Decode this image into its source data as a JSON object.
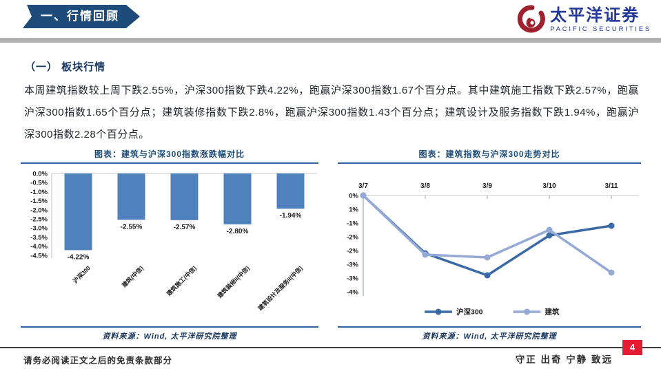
{
  "header": {
    "section_banner": "一、行情回顾",
    "logo_cn": "太平洋证券",
    "logo_en": "PACIFIC SECURITIES"
  },
  "page": {
    "subsection_title": "（一） 板块行情",
    "paragraph": "本周建筑指数较上周下跌2.55%，沪深300指数下跌4.22%，跑赢沪深300指数1.67个百分点。其中建筑施工指数下跌2.57%，跑赢沪深300指数1.65个百分点；建筑装修指数下跌2.8%，跑赢沪深300指数1.43个百分点；建筑设计及服务指数下跌1.94%，跑赢沪深300指数2.28个百分点。"
  },
  "chart_data": [
    {
      "type": "bar",
      "title": "图表：建筑与沪深300指数涨跌幅对比",
      "categories": [
        "沪深300",
        "建筑(中信)",
        "建筑施工(中信)",
        "建筑装修II(中信)",
        "建筑设计及服务II(中信)"
      ],
      "values": [
        -4.22,
        -2.55,
        -2.57,
        -2.8,
        -1.94
      ],
      "data_labels": [
        "-4.22%",
        "-2.55%",
        "-2.57%",
        "-2.80%",
        "-1.94%"
      ],
      "yticks": [
        "0.0%",
        "-0.5%",
        "-1.0%",
        "-1.5%",
        "-2.0%",
        "-2.5%",
        "-3.0%",
        "-3.5%",
        "-4.0%",
        "-4.5%"
      ],
      "ylim": [
        0,
        -4.5
      ],
      "bar_color": "#4f81bd",
      "grid": "zero-line-only",
      "source": "资料来源：Wind, 太平洋研究院整理"
    },
    {
      "type": "line",
      "title": "图表：建筑指数与沪深300走势对比",
      "x": [
        "3/7",
        "3/8",
        "3/9",
        "3/10",
        "3/11"
      ],
      "series": [
        {
          "name": "沪深300",
          "color": "#3a6aa5",
          "values": [
            0,
            -2.1,
            -2.9,
            -1.45,
            -1.1
          ]
        },
        {
          "name": "建筑",
          "color": "#95a9d6",
          "values": [
            0,
            -2.15,
            -2.25,
            -1.25,
            -2.8
          ]
        }
      ],
      "yticks": [
        "0%",
        "1%",
        "-1%",
        "-2%",
        "-2%",
        "-3%",
        "-3%",
        "-4%"
      ],
      "ylim": [
        0,
        -4
      ],
      "legend_position": "bottom",
      "grid": "zero-line-only",
      "source": "资料来源：Wind, 太平洋研究院整理"
    }
  ],
  "footer": {
    "disclaimer": "请务必阅读正文之后的免责条款部分",
    "motto": "守正 出奇 宁静 致远",
    "page_number": "4"
  },
  "colors": {
    "banner_navy": "#1d4b7a",
    "logo_blue": "#23379b",
    "logo_red": "#9e2130",
    "heading_navy": "#17375e",
    "chart_title_blue": "#1f4e79",
    "rule_blue": "#2f5f9f",
    "bar_blue": "#4f81bd",
    "line_dark_blue": "#3a6aa5",
    "line_light_blue": "#95a9d6",
    "page_number_red": "#e61a32",
    "divider_gray": "#b1b1b1"
  }
}
